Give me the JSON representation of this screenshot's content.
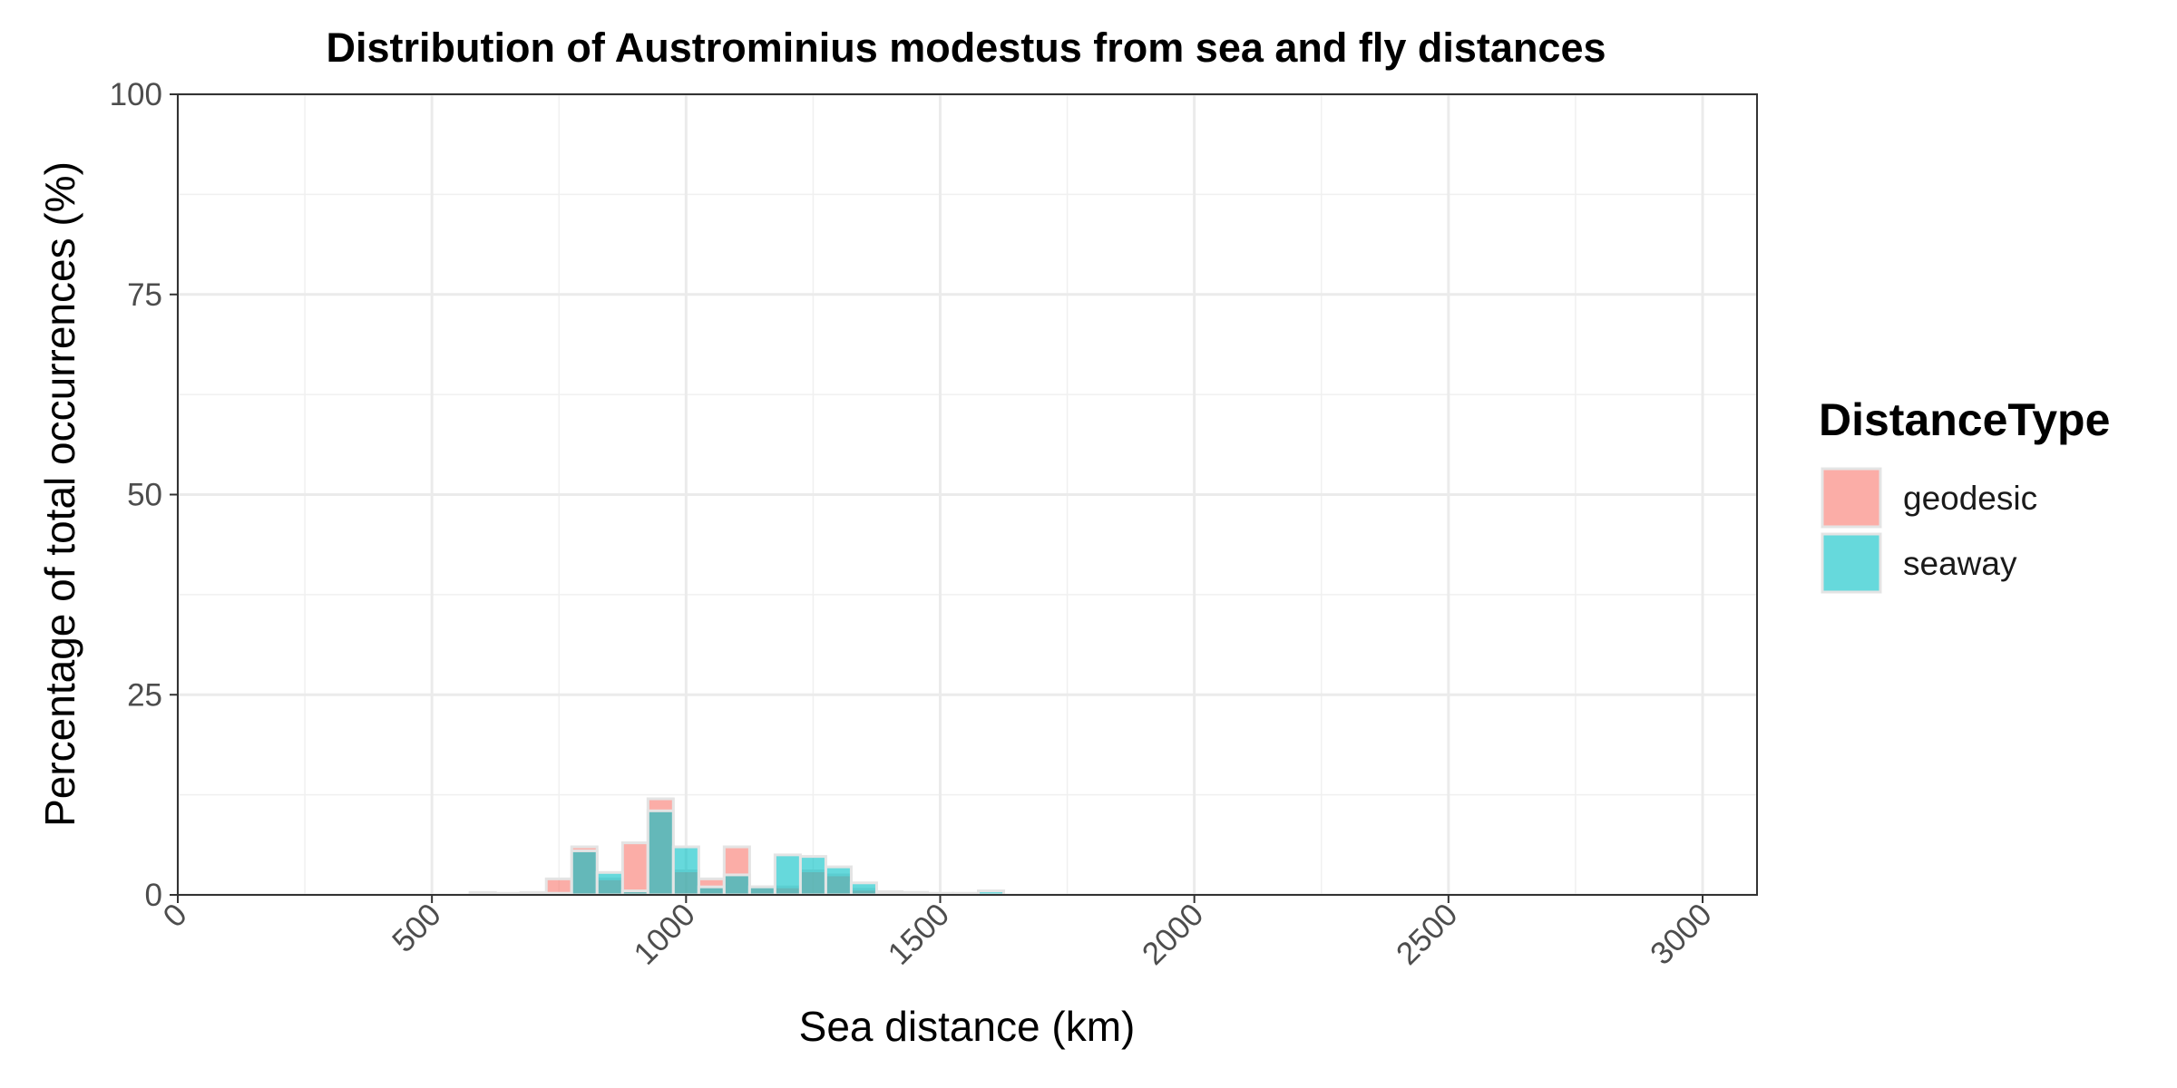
{
  "chart_data": {
    "type": "bar",
    "title": "Distribution of Austrominius modestus from sea and fly distances",
    "xlabel": "Sea distance (km)",
    "ylabel": "Percentage of total occurrences (%)",
    "xlim": [
      0,
      3100
    ],
    "ylim": [
      0,
      100
    ],
    "x_ticks": [
      0,
      500,
      1000,
      1500,
      2000,
      2500,
      3000
    ],
    "x_tick_labels": [
      "0",
      "500",
      "1000",
      "1500",
      "2000",
      "2500",
      "3000"
    ],
    "y_ticks": [
      0,
      25,
      50,
      75,
      100
    ],
    "y_tick_labels": [
      "0",
      "25",
      "50",
      "75",
      "100"
    ],
    "bin_width": 50,
    "grid": true,
    "legend": {
      "title": "DistanceType",
      "position": "right"
    },
    "series": [
      {
        "name": "geodesic",
        "color": "#F8766D",
        "x": [
          600,
          650,
          700,
          750,
          800,
          850,
          900,
          950,
          1000,
          1050,
          1100,
          1150,
          1200,
          1250,
          1300,
          1350,
          1400,
          1450
        ],
        "values": [
          0.3,
          0.2,
          0.3,
          2.0,
          6.0,
          2.0,
          6.5,
          12.0,
          3.0,
          2.0,
          6.0,
          1.0,
          1.0,
          3.0,
          2.5,
          0.7,
          0.4,
          0.3
        ]
      },
      {
        "name": "seaway",
        "color": "#00BFC4",
        "x": [
          600,
          650,
          700,
          750,
          800,
          850,
          900,
          950,
          1000,
          1050,
          1100,
          1150,
          1200,
          1250,
          1300,
          1350,
          1400,
          1450,
          1500,
          1550,
          1600
        ],
        "values": [
          0.1,
          0.1,
          0.2,
          0.2,
          5.5,
          2.8,
          0.5,
          10.5,
          6.0,
          1.0,
          2.5,
          1.0,
          5.0,
          4.8,
          3.5,
          1.5,
          0.3,
          0.3,
          0.2,
          0.2,
          0.5
        ]
      }
    ]
  }
}
